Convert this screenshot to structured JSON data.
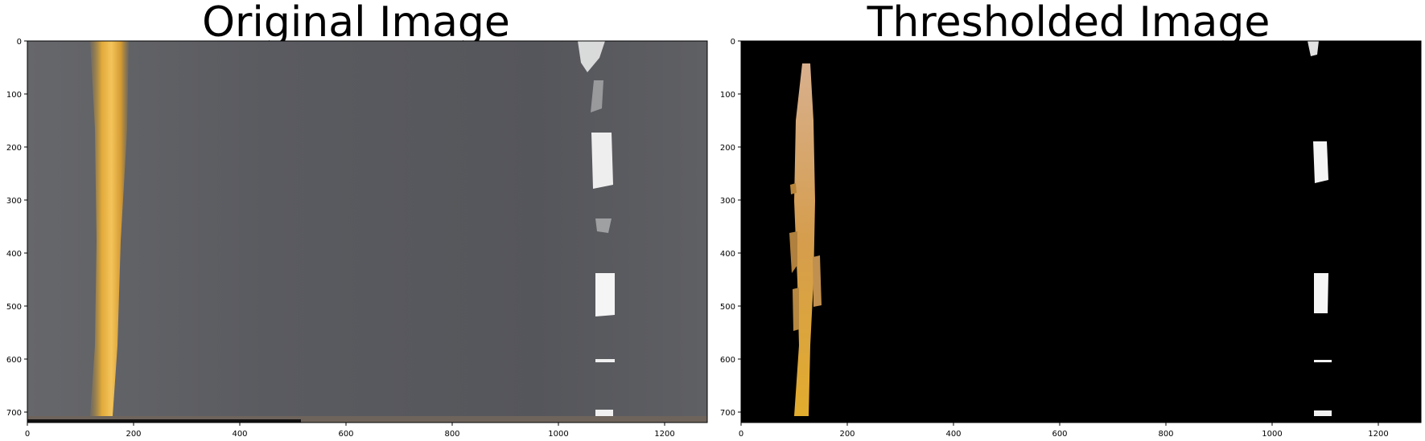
{
  "panels": [
    {
      "title": "Original Image",
      "x_ticks": [
        "0",
        "200",
        "400",
        "600",
        "800",
        "1000",
        "1200"
      ],
      "y_ticks": [
        "0",
        "100",
        "200",
        "300",
        "400",
        "500",
        "600",
        "700"
      ],
      "x_range": [
        0,
        1280
      ],
      "y_range": [
        0,
        720
      ],
      "colors": {
        "road": "#5d5d62",
        "yellow_line": "#e6b23e",
        "white_dash": "#f0f0f0"
      }
    },
    {
      "title": "Thresholded Image",
      "x_ticks": [
        "0",
        "200",
        "400",
        "600",
        "800",
        "1000",
        "1200"
      ],
      "y_ticks": [
        "0",
        "100",
        "200",
        "300",
        "400",
        "500",
        "600",
        "700"
      ],
      "x_range": [
        0,
        1280
      ],
      "y_range": [
        0,
        720
      ],
      "colors": {
        "background": "#000000",
        "yellow_line": "#d7a35a",
        "white_dash": "#f4f4f4"
      }
    }
  ]
}
